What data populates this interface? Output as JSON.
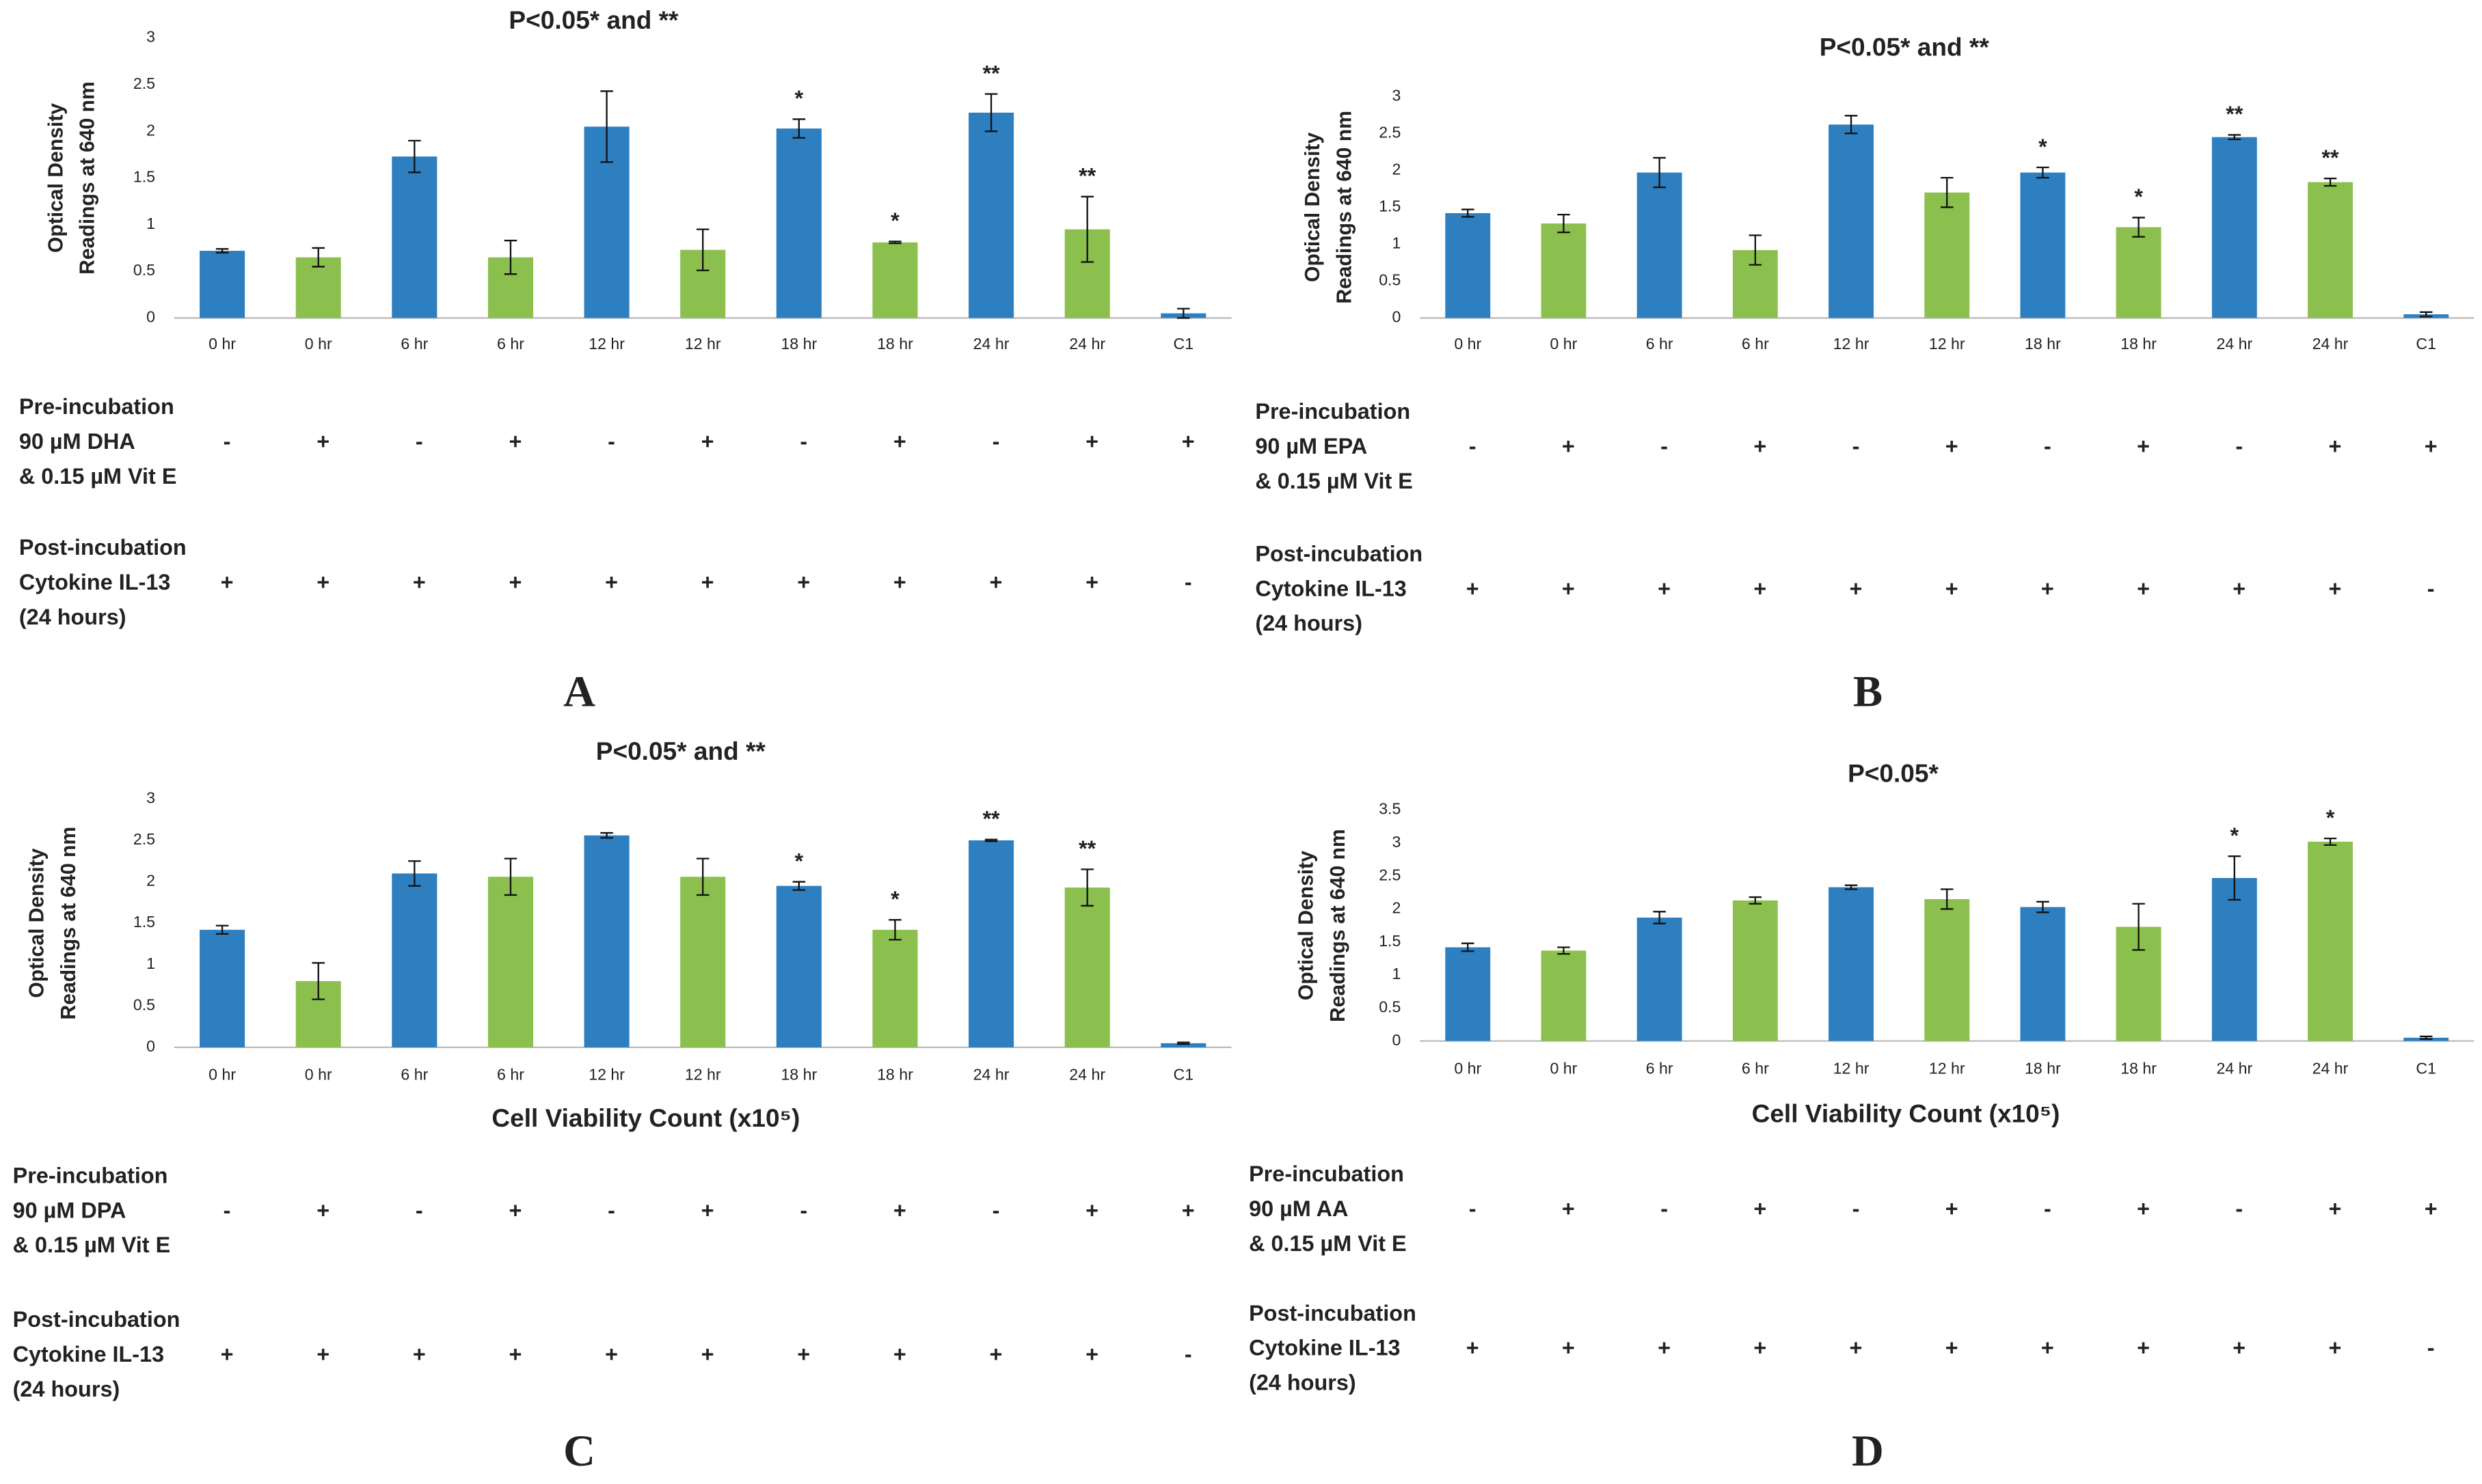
{
  "chart_data": [
    {
      "type": "bar",
      "panel": "A",
      "title": "P<0.05* and **",
      "y_label": [
        "Optical Density",
        "Readings at 640 nm"
      ],
      "categories": [
        "0 hr",
        "0 hr",
        "6 hr",
        "6 hr",
        "12 hr",
        "12 hr",
        "18 hr",
        "18 hr",
        "24 hr",
        "24 hr",
        "C1"
      ],
      "values": [
        0.72,
        0.65,
        1.73,
        0.65,
        2.05,
        0.73,
        2.03,
        0.81,
        2.2,
        0.95,
        0.05
      ],
      "errors": [
        0.02,
        0.1,
        0.17,
        0.18,
        0.38,
        0.22,
        0.1,
        0.01,
        0.2,
        0.35,
        0.05
      ],
      "colors": [
        "#2e7fc0",
        "#8cc04e",
        "#2e7fc0",
        "#8cc04e",
        "#2e7fc0",
        "#8cc04e",
        "#2e7fc0",
        "#8cc04e",
        "#2e7fc0",
        "#8cc04e",
        "#2e7fc0"
      ],
      "significance": [
        null,
        null,
        null,
        null,
        null,
        null,
        "*",
        "*",
        "**",
        "**",
        null
      ],
      "ylim": [
        0,
        3
      ],
      "yticks": [
        0,
        0.5,
        1,
        1.5,
        2,
        2.5,
        3
      ],
      "pre_label": [
        "Pre-incubation",
        "90 µM DHA",
        "& 0.15 µM Vit E"
      ],
      "pre_signs": [
        "-",
        "+",
        "-",
        "+",
        "-",
        "+",
        "-",
        "+",
        "-",
        "+",
        "+"
      ],
      "post_label": [
        "Post-incubation",
        "Cytokine IL-13",
        "(24 hours)"
      ],
      "post_signs": [
        "+",
        "+",
        "+",
        "+",
        "+",
        "+",
        "+",
        "+",
        "+",
        "+",
        "-"
      ]
    },
    {
      "type": "bar",
      "panel": "B",
      "title": "P<0.05* and **",
      "y_label": [
        "Optical Density",
        "Readings at 640 nm"
      ],
      "categories": [
        "0 hr",
        "0 hr",
        "6 hr",
        "6 hr",
        "12 hr",
        "12 hr",
        "18 hr",
        "18 hr",
        "24 hr",
        "24 hr",
        "C1"
      ],
      "values": [
        1.42,
        1.28,
        1.97,
        0.92,
        2.62,
        1.7,
        1.97,
        1.23,
        2.45,
        1.84,
        0.05
      ],
      "errors": [
        0.05,
        0.12,
        0.2,
        0.2,
        0.12,
        0.2,
        0.07,
        0.13,
        0.03,
        0.05,
        0.03
      ],
      "colors": [
        "#2e7fc0",
        "#8cc04e",
        "#2e7fc0",
        "#8cc04e",
        "#2e7fc0",
        "#8cc04e",
        "#2e7fc0",
        "#8cc04e",
        "#2e7fc0",
        "#8cc04e",
        "#2e7fc0"
      ],
      "significance": [
        null,
        null,
        null,
        null,
        null,
        null,
        "*",
        "*",
        "**",
        "**",
        null
      ],
      "ylim": [
        0,
        3
      ],
      "yticks": [
        0,
        0.5,
        1,
        1.5,
        2,
        2.5,
        3
      ],
      "pre_label": [
        "Pre-incubation",
        "90 µM EPA",
        "& 0.15 µM Vit E"
      ],
      "pre_signs": [
        "-",
        "+",
        "-",
        "+",
        "-",
        "+",
        "-",
        "+",
        "-",
        "+",
        "+"
      ],
      "post_label": [
        "Post-incubation",
        "Cytokine IL-13",
        "(24 hours)"
      ],
      "post_signs": [
        "+",
        "+",
        "+",
        "+",
        "+",
        "+",
        "+",
        "+",
        "+",
        "+",
        "-"
      ]
    },
    {
      "type": "bar",
      "panel": "C",
      "title": "P<0.05* and **",
      "y_label": [
        "Optical Density",
        "Readings at 640 nm"
      ],
      "x_label": "Cell Viability Count (x10⁵)",
      "categories": [
        "0 hr",
        "0 hr",
        "6 hr",
        "6 hr",
        "12 hr",
        "12 hr",
        "18 hr",
        "18 hr",
        "24 hr",
        "24 hr",
        "C1"
      ],
      "values": [
        1.42,
        0.8,
        2.1,
        2.06,
        2.56,
        2.06,
        1.95,
        1.42,
        2.5,
        1.93,
        0.05
      ],
      "errors": [
        0.05,
        0.22,
        0.15,
        0.22,
        0.03,
        0.22,
        0.05,
        0.12,
        0.01,
        0.22,
        0.01
      ],
      "colors": [
        "#2e7fc0",
        "#8cc04e",
        "#2e7fc0",
        "#8cc04e",
        "#2e7fc0",
        "#8cc04e",
        "#2e7fc0",
        "#8cc04e",
        "#2e7fc0",
        "#8cc04e",
        "#2e7fc0"
      ],
      "significance": [
        null,
        null,
        null,
        null,
        null,
        null,
        "*",
        "*",
        "**",
        "**",
        null
      ],
      "ylim": [
        0,
        3
      ],
      "yticks": [
        0,
        0.5,
        1,
        1.5,
        2,
        2.5,
        3
      ],
      "pre_label": [
        "Pre-incubation",
        "90 µM DPA",
        "& 0.15 µM Vit E"
      ],
      "pre_signs": [
        "-",
        "+",
        "-",
        "+",
        "-",
        "+",
        "-",
        "+",
        "-",
        "+",
        "+"
      ],
      "post_label": [
        "Post-incubation",
        "Cytokine IL-13",
        "(24 hours)"
      ],
      "post_signs": [
        "+",
        "+",
        "+",
        "+",
        "+",
        "+",
        "+",
        "+",
        "+",
        "+",
        "-"
      ]
    },
    {
      "type": "bar",
      "panel": "D",
      "title": "P<0.05*",
      "y_label": [
        "Optical Density",
        "Readings at 640 nm"
      ],
      "x_label": "Cell Viability Count (x10⁵)",
      "categories": [
        "0 hr",
        "0 hr",
        "6 hr",
        "6 hr",
        "12 hr",
        "12 hr",
        "18 hr",
        "18 hr",
        "24 hr",
        "24 hr",
        "C1"
      ],
      "values": [
        1.42,
        1.37,
        1.87,
        2.13,
        2.33,
        2.15,
        2.03,
        1.73,
        2.47,
        3.02,
        0.05
      ],
      "errors": [
        0.06,
        0.05,
        0.09,
        0.05,
        0.03,
        0.15,
        0.08,
        0.35,
        0.33,
        0.05,
        0.02
      ],
      "colors": [
        "#2e7fc0",
        "#8cc04e",
        "#2e7fc0",
        "#8cc04e",
        "#2e7fc0",
        "#8cc04e",
        "#2e7fc0",
        "#8cc04e",
        "#2e7fc0",
        "#8cc04e",
        "#2e7fc0"
      ],
      "significance": [
        null,
        null,
        null,
        null,
        null,
        null,
        null,
        null,
        "*",
        "*",
        null
      ],
      "ylim": [
        0,
        3.5
      ],
      "yticks": [
        0,
        0.5,
        1,
        1.5,
        2,
        2.5,
        3,
        3.5
      ],
      "pre_label": [
        "Pre-incubation",
        "90 µM AA",
        "& 0.15 µM Vit E"
      ],
      "pre_signs": [
        "-",
        "+",
        "-",
        "+",
        "-",
        "+",
        "-",
        "+",
        "-",
        "+",
        "+"
      ],
      "post_label": [
        "Post-incubation",
        "Cytokine IL-13",
        "(24 hours)"
      ],
      "post_signs": [
        "+",
        "+",
        "+",
        "+",
        "+",
        "+",
        "+",
        "+",
        "+",
        "+",
        "-"
      ]
    }
  ]
}
